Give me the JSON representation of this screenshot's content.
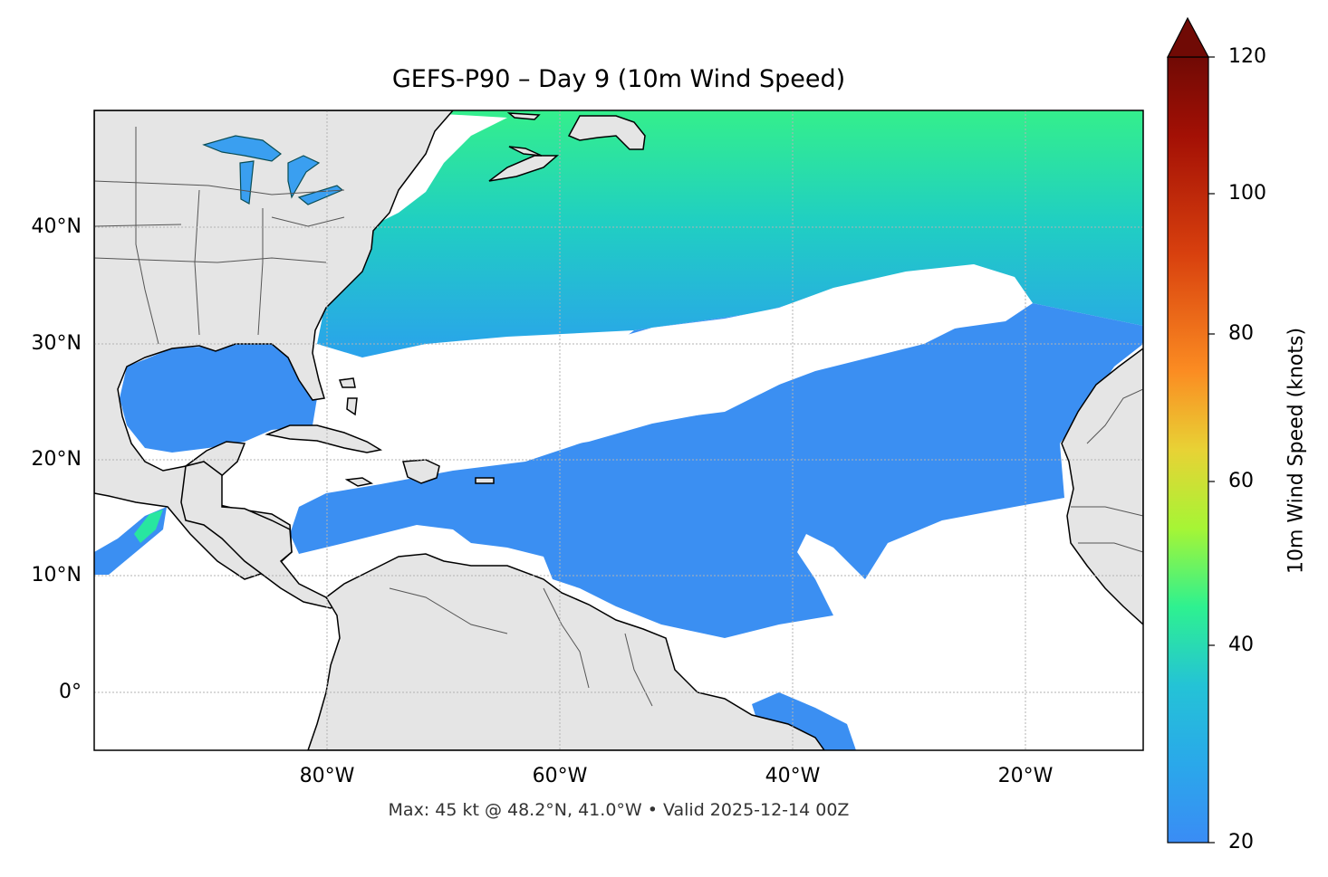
{
  "map": {
    "title": "GEFS-P90 – Day 9 (10m Wind Speed)",
    "footer": "Max: 45 kt @ 48.2°N, 41.0°W • Valid 2025-12-14 00Z",
    "lat_ticks": [
      "40°N",
      "30°N",
      "20°N",
      "10°N",
      "0°"
    ],
    "lon_ticks": [
      "80°W",
      "60°W",
      "40°W",
      "20°W"
    ],
    "extent": {
      "lon": [
        -100,
        -10
      ],
      "lat": [
        -5,
        50
      ]
    },
    "land_color": "#e5e5e5"
  },
  "colorbar": {
    "label": "10m Wind Speed (knots)",
    "ticks": [
      "120",
      "100",
      "80",
      "60",
      "40",
      "20"
    ],
    "range": [
      20,
      120
    ],
    "extend": "max",
    "colors": [
      "#3a8cf5",
      "#24c3d6",
      "#2ef190",
      "#a6f535",
      "#e8d235",
      "#fb8c22",
      "#d8400e",
      "#a31005",
      "#700a05"
    ]
  }
}
